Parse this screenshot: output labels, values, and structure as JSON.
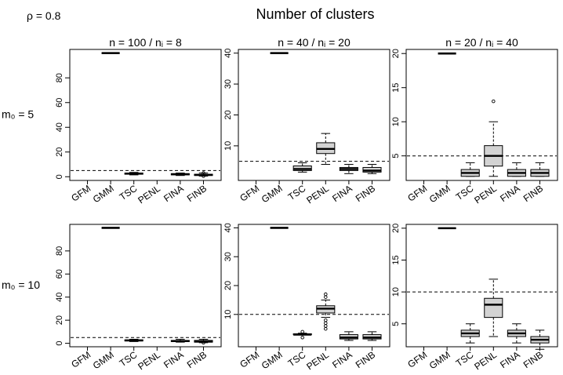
{
  "figure": {
    "title": "Number of clusters",
    "corner_label": "ρ = 0.8"
  },
  "chart_data": [
    {
      "type": "box",
      "panel_title": "n = 100 / nᵢ = 8",
      "row_label": "m₀ = 5",
      "ylim": [
        -3,
        103
      ],
      "yticks": [
        0,
        20,
        40,
        60,
        80
      ],
      "reference_line": 5,
      "categories": [
        "GFM",
        "GMM",
        "TSC",
        "PENL",
        "FINA",
        "FINB"
      ],
      "boxes": [
        null,
        {
          "min": 100,
          "q1": 100,
          "median": 100,
          "q3": 100,
          "max": 100,
          "outliers": []
        },
        {
          "min": 1.5,
          "q1": 2,
          "median": 2.5,
          "q3": 3,
          "max": 3.5,
          "outliers": []
        },
        null,
        {
          "min": 1,
          "q1": 1.5,
          "median": 2,
          "q3": 2.5,
          "max": 3,
          "outliers": []
        },
        {
          "min": 0.5,
          "q1": 1,
          "median": 1.5,
          "q3": 2,
          "max": 3,
          "outliers": [
            0.5,
            3
          ]
        }
      ]
    },
    {
      "type": "box",
      "panel_title": "n = 40 / nᵢ = 20",
      "row_label": "",
      "ylim": [
        -1.2,
        41.2
      ],
      "yticks": [
        10,
        20,
        30,
        40
      ],
      "reference_line": 5,
      "categories": [
        "GFM",
        "GMM",
        "TSC",
        "PENL",
        "FINA",
        "FINB"
      ],
      "boxes": [
        null,
        {
          "min": 40,
          "q1": 40,
          "median": 40,
          "q3": 40,
          "max": 40,
          "outliers": []
        },
        {
          "min": 1.5,
          "q1": 2,
          "median": 2.5,
          "q3": 3.5,
          "max": 4.5,
          "outliers": []
        },
        {
          "min": 4,
          "q1": 7.5,
          "median": 9,
          "q3": 11,
          "max": 14,
          "outliers": []
        },
        {
          "min": 1,
          "q1": 2,
          "median": 2.5,
          "q3": 3,
          "max": 4,
          "outliers": []
        },
        {
          "min": 1,
          "q1": 1.5,
          "median": 2,
          "q3": 3,
          "max": 4,
          "outliers": []
        }
      ]
    },
    {
      "type": "box",
      "panel_title": "n = 20 / nᵢ = 40",
      "row_label": "",
      "ylim": [
        1.4,
        20.6
      ],
      "yticks": [
        5,
        10,
        15,
        20
      ],
      "reference_line": 5,
      "categories": [
        "GFM",
        "GMM",
        "TSC",
        "PENL",
        "FINA",
        "FINB"
      ],
      "boxes": [
        null,
        {
          "min": 20,
          "q1": 20,
          "median": 20,
          "q3": 20,
          "max": 20,
          "outliers": []
        },
        {
          "min": 2,
          "q1": 2,
          "median": 2.5,
          "q3": 3,
          "max": 4,
          "outliers": []
        },
        {
          "min": 2,
          "q1": 3.5,
          "median": 5,
          "q3": 6.5,
          "max": 10,
          "outliers": [
            13
          ]
        },
        {
          "min": 2,
          "q1": 2,
          "median": 2.5,
          "q3": 3,
          "max": 4,
          "outliers": []
        },
        {
          "min": 2,
          "q1": 2,
          "median": 2.5,
          "q3": 3,
          "max": 4,
          "outliers": []
        }
      ]
    },
    {
      "type": "box",
      "panel_title": "",
      "row_label": "m₀ = 10",
      "ylim": [
        -3,
        103
      ],
      "yticks": [
        0,
        20,
        40,
        60,
        80
      ],
      "reference_line": 5,
      "categories": [
        "GFM",
        "GMM",
        "TSC",
        "PENL",
        "FINA",
        "FINB"
      ],
      "boxes": [
        null,
        {
          "min": 100,
          "q1": 100,
          "median": 100,
          "q3": 100,
          "max": 100,
          "outliers": []
        },
        {
          "min": 1.5,
          "q1": 2,
          "median": 2.5,
          "q3": 3,
          "max": 3.5,
          "outliers": []
        },
        null,
        {
          "min": 1,
          "q1": 1.5,
          "median": 2,
          "q3": 2.5,
          "max": 3.5,
          "outliers": []
        },
        {
          "min": 0.5,
          "q1": 1,
          "median": 1.5,
          "q3": 2.5,
          "max": 3.5,
          "outliers": [
            0.5
          ]
        }
      ]
    },
    {
      "type": "box",
      "panel_title": "",
      "row_label": "",
      "ylim": [
        -1.2,
        41.2
      ],
      "yticks": [
        10,
        20,
        30,
        40
      ],
      "reference_line": 10,
      "categories": [
        "GFM",
        "GMM",
        "TSC",
        "PENL",
        "FINA",
        "FINB"
      ],
      "boxes": [
        null,
        {
          "min": 40,
          "q1": 40,
          "median": 40,
          "q3": 40,
          "max": 40,
          "outliers": []
        },
        {
          "min": 3,
          "q1": 3,
          "median": 3,
          "q3": 3.3,
          "max": 3.5,
          "outliers": [
            2,
            4
          ]
        },
        {
          "min": 9,
          "q1": 10.5,
          "median": 12,
          "q3": 13,
          "max": 15,
          "outliers": [
            5,
            6,
            7,
            8,
            16,
            17
          ]
        },
        {
          "min": 1,
          "q1": 1.5,
          "median": 2,
          "q3": 3,
          "max": 4,
          "outliers": []
        },
        {
          "min": 1,
          "q1": 1.5,
          "median": 2,
          "q3": 3,
          "max": 4,
          "outliers": []
        }
      ]
    },
    {
      "type": "box",
      "panel_title": "",
      "row_label": "",
      "ylim": [
        1.4,
        20.6
      ],
      "yticks": [
        5,
        10,
        15,
        20
      ],
      "reference_line": 10,
      "categories": [
        "GFM",
        "GMM",
        "TSC",
        "PENL",
        "FINA",
        "FINB"
      ],
      "boxes": [
        null,
        {
          "min": 20,
          "q1": 20,
          "median": 20,
          "q3": 20,
          "max": 20,
          "outliers": []
        },
        {
          "min": 2,
          "q1": 3,
          "median": 3.5,
          "q3": 4,
          "max": 5,
          "outliers": []
        },
        {
          "min": 3,
          "q1": 6,
          "median": 8,
          "q3": 9,
          "max": 12,
          "outliers": []
        },
        {
          "min": 2,
          "q1": 3,
          "median": 3.5,
          "q3": 4,
          "max": 5,
          "outliers": []
        },
        {
          "min": 1,
          "q1": 2,
          "median": 2.5,
          "q3": 3,
          "max": 4,
          "outliers": []
        }
      ]
    }
  ]
}
